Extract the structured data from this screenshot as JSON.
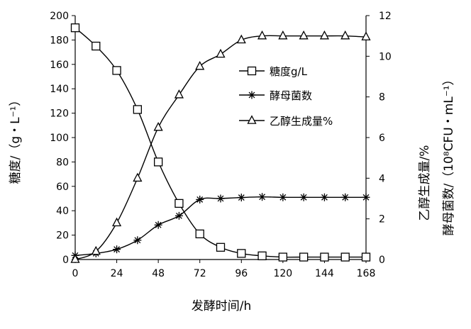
{
  "chart_data": {
    "type": "line",
    "xlabel": "发酵时间/h",
    "ylabel_left": "糖度/（g・L⁻¹）",
    "ylabel_right_outer": "酵母菌数/（10⁸CFU・mL⁻¹）",
    "ylabel_right_inner": "乙醇生成量/%",
    "x_ticks": [
      0,
      24,
      48,
      72,
      96,
      120,
      144,
      168
    ],
    "xlim": [
      0,
      168
    ],
    "y_left_ticks": [
      0,
      20,
      40,
      60,
      80,
      100,
      120,
      140,
      160,
      180,
      200
    ],
    "ylim_left": [
      0,
      200
    ],
    "y_right_ticks": [
      0,
      2,
      4,
      6,
      8,
      10,
      12
    ],
    "ylim_right": [
      0,
      12
    ],
    "grid": false,
    "legend_position": "center-right",
    "series": [
      {
        "name": "糖度g/L",
        "axis": "left",
        "marker": "square",
        "x": [
          0,
          12,
          24,
          36,
          48,
          60,
          72,
          84,
          96,
          108,
          120,
          132,
          144,
          156,
          168
        ],
        "values": [
          190,
          175,
          155,
          123,
          80,
          46,
          21,
          10,
          5,
          3,
          2,
          2,
          2,
          2,
          2
        ]
      },
      {
        "name": "酵母菌数",
        "axis": "right",
        "marker": "star",
        "x": [
          0,
          12,
          24,
          36,
          48,
          60,
          72,
          84,
          96,
          108,
          120,
          132,
          144,
          156,
          168
        ],
        "values": [
          0.2,
          0.3,
          0.5,
          0.95,
          1.7,
          2.15,
          2.95,
          3.0,
          3.05,
          3.08,
          3.06,
          3.06,
          3.06,
          3.06,
          3.06
        ]
      },
      {
        "name": "乙醇生成量%",
        "axis": "right",
        "marker": "triangle",
        "x": [
          0,
          12,
          24,
          36,
          48,
          60,
          72,
          84,
          96,
          108,
          120,
          132,
          144,
          156,
          168
        ],
        "values": [
          0,
          0.4,
          1.8,
          4.0,
          6.5,
          8.1,
          9.5,
          10.1,
          10.8,
          11.0,
          11.0,
          11.0,
          11.0,
          11.0,
          10.95
        ]
      }
    ]
  }
}
